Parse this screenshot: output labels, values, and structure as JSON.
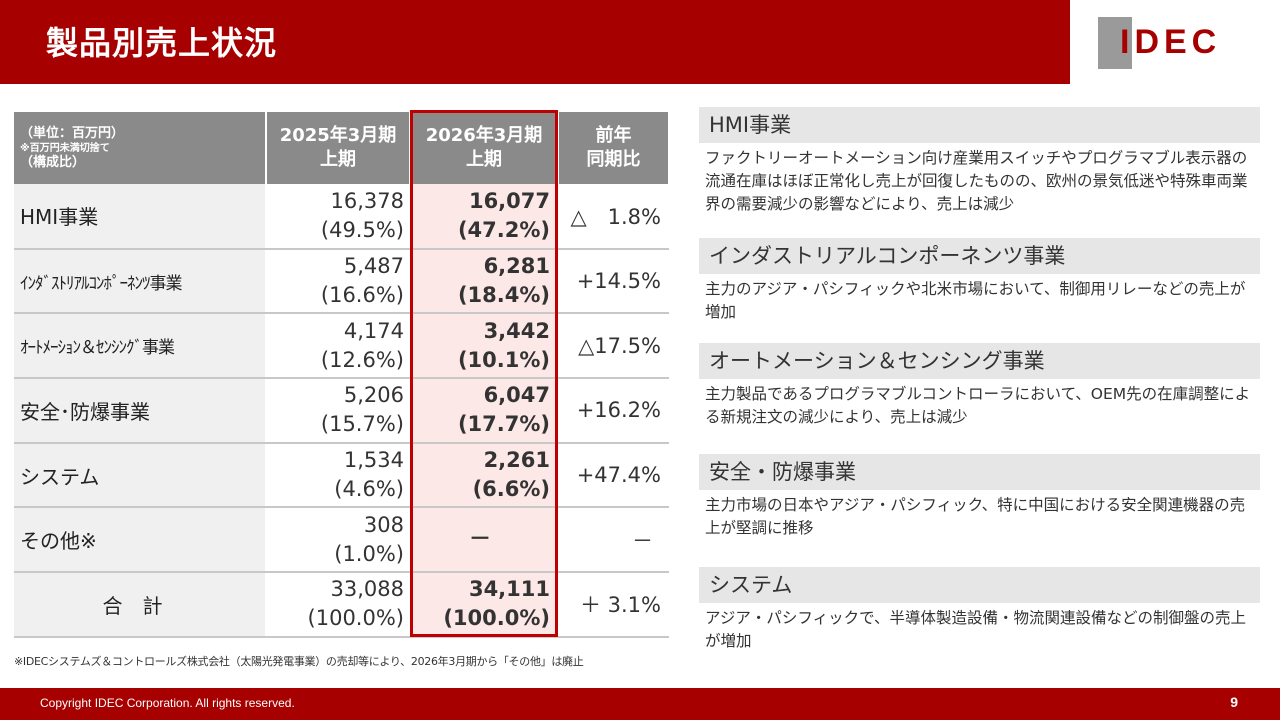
{
  "header": {
    "title": "製品別売上状況"
  },
  "logo": {
    "text": "IDEC",
    "brand_color": "#a60000"
  },
  "table": {
    "header": {
      "unit": "（単位：百万円）",
      "unit_note": "※百万円未満切捨て",
      "ratio_note": "（構成比）",
      "col1_line1": "2025年3月期",
      "col1_line2": "上期",
      "col2_line1": "2026年3月期",
      "col2_line2": "上期",
      "col3_line1": "前年",
      "col3_line2": "同期比"
    },
    "rows": [
      {
        "label": "HMI事業",
        "v25": "16,378",
        "r25": "(49.5%)",
        "v26": "16,077",
        "r26": "(47.2%)",
        "yoy": "△　1.8%"
      },
      {
        "label": "ｲﾝﾀﾞｽﾄﾘｱﾙｺﾝﾎﾟｰﾈﾝﾂ事業",
        "v25": "5,487",
        "r25": "(16.6%)",
        "v26": "6,281",
        "r26": "(18.4%)",
        "yoy": "+14.5%"
      },
      {
        "label": "ｵｰﾄﾒｰｼｮﾝ＆ｾﾝｼﾝｸﾞ事業",
        "v25": "4,174",
        "r25": "(12.6%)",
        "v26": "3,442",
        "r26": "(10.1%)",
        "yoy": "△17.5%"
      },
      {
        "label": "安全･防爆事業",
        "v25": "5,206",
        "r25": "(15.7%)",
        "v26": "6,047",
        "r26": "(17.7%)",
        "yoy": "+16.2%"
      },
      {
        "label": "システム",
        "v25": "1,534",
        "r25": "(4.6%)",
        "v26": "2,261",
        "r26": "(6.6%)",
        "yoy": "+47.4%"
      },
      {
        "label": "その他※",
        "v25": "308",
        "r25": "(1.0%)",
        "v26": "－",
        "r26": "",
        "yoy": "－"
      },
      {
        "label": "合計",
        "v25": "33,088",
        "r25": "(100.0%)",
        "v26": "34,111",
        "r26": "(100.0%)",
        "yoy": "＋ 3.1%"
      }
    ]
  },
  "footnote": "※IDECシステムズ＆コントロールズ株式会社（太陽光発電事業）の売却等により、2026年3月期から「その他」は廃止",
  "sections": [
    {
      "title": "HMI事業",
      "body": "ファクトリーオートメーション向け産業用スイッチやプログラマブル表示器の流通在庫はほぼ正常化し売上が回復したものの、欧州の景気低迷や特殊車両業界の需要減少の影響などにより、売上は減少"
    },
    {
      "title": "インダストリアルコンポーネンツ事業",
      "body": "主力のアジア・パシフィックや北米市場において、制御用リレーなどの売上が増加"
    },
    {
      "title": "オートメーション＆センシング事業",
      "body": "主力製品であるプログラマブルコントローラにおいて、OEM先の在庫調整による新規注文の減少により、売上は減少"
    },
    {
      "title": "安全・防爆事業",
      "body": "主力市場の日本やアジア・パシフィック、特に中国における安全関連機器の売上が堅調に推移"
    },
    {
      "title": "システム",
      "body": "アジア・パシフィックで、半導体製造設備・物流関連設備などの制御盤の売上が増加"
    }
  ],
  "footer": {
    "copyright": "Copyright IDEC Corporation. All rights reserved.",
    "page": "9"
  }
}
